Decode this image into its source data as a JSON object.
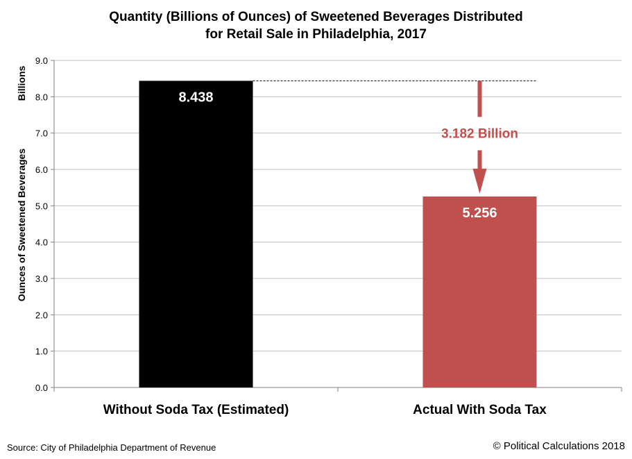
{
  "title_line1": "Quantity (Billions of Ounces) of Sweetened Beverages Distributed",
  "title_line2": "for Retail Sale in Philadelphia, 2017",
  "source": "Source: City of Philadelphia Department of Revenue",
  "copyright": "© Political Calculations 2018",
  "colors": {
    "bar_without_tax": "#000000",
    "bar_with_tax": "#c0504d",
    "annotation": "#c0504d",
    "grid": "#c0c0c0"
  },
  "chart_data": {
    "type": "bar",
    "categories": [
      "Without Soda Tax (Estimated)",
      "Actual With Soda Tax"
    ],
    "values": [
      8.438,
      5.256
    ],
    "value_labels": [
      "8.438",
      "5.256"
    ],
    "title": "Quantity (Billions of Ounces) of Sweetened Beverages Distributed for Retail Sale in Philadelphia, 2017",
    "xlabel": "",
    "ylabel": "Ounces of Sweetened Beverages",
    "ylabel_unit": "Billions",
    "ylim": [
      0,
      9
    ],
    "yticks": [
      "0.0",
      "1.0",
      "2.0",
      "3.0",
      "4.0",
      "5.0",
      "6.0",
      "7.0",
      "8.0",
      "9.0"
    ],
    "grid": true,
    "legend": "none",
    "annotation": {
      "text": "3.182 Billion",
      "difference": 3.182,
      "from": 8.438,
      "to": 5.256
    }
  }
}
